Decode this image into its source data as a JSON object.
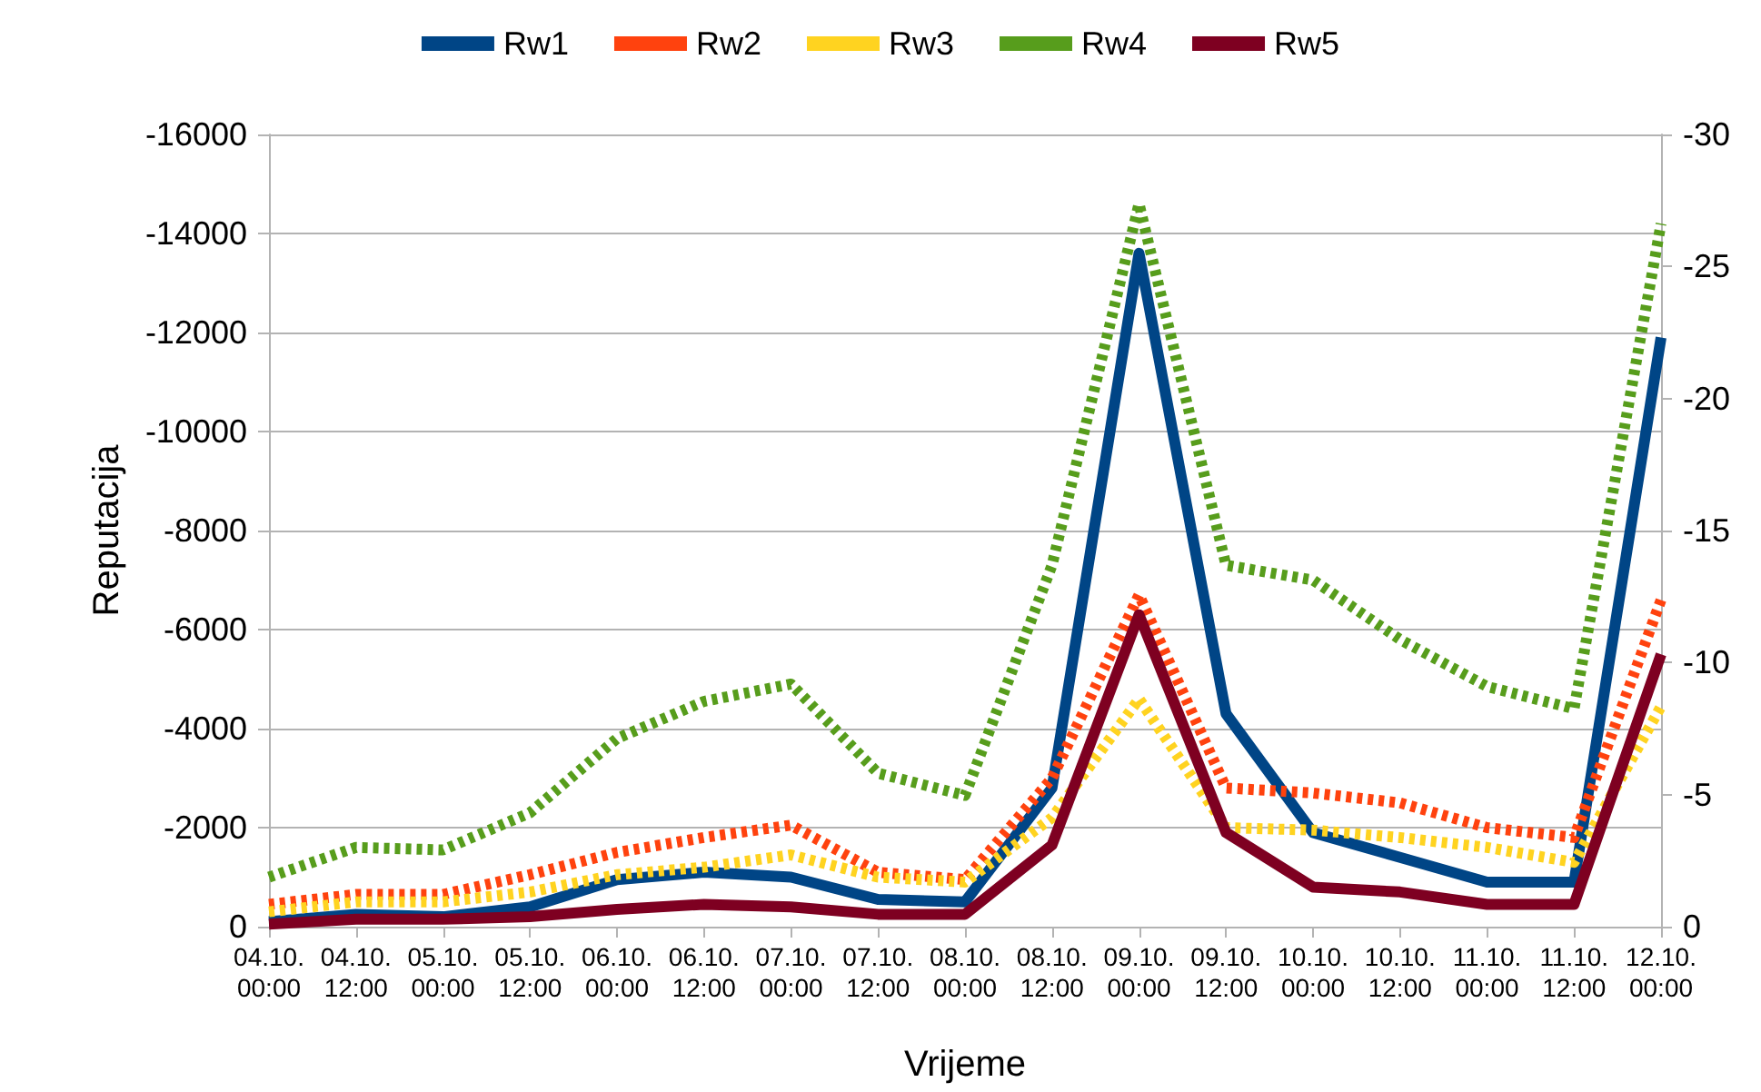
{
  "chart_data": {
    "type": "line",
    "xlabel": "Vrijeme",
    "ylabel": "Reputacija",
    "categories": [
      "04.10. 00:00",
      "04.10. 12:00",
      "05.10. 00:00",
      "05.10. 12:00",
      "06.10. 00:00",
      "06.10. 12:00",
      "07.10. 00:00",
      "07.10. 12:00",
      "08.10. 00:00",
      "08.10. 12:00",
      "09.10. 00:00",
      "09.10. 12:00",
      "10.10. 00:00",
      "10.10. 12:00",
      "11.10. 00:00",
      "11.10. 12:00",
      "12.10. 00:00"
    ],
    "series": [
      {
        "name": "Rw1",
        "color": "#004586",
        "line_style": "solid",
        "values": [
          -100,
          -250,
          -200,
          -400,
          -950,
          -1100,
          -1000,
          -550,
          -500,
          -2800,
          -13600,
          -4300,
          -1900,
          -1400,
          -900,
          -900,
          -11900
        ]
      },
      {
        "name": "Rw2",
        "color": "#ff420e",
        "line_style": "dotted",
        "values": [
          -450,
          -650,
          -650,
          -1050,
          -1500,
          -1800,
          -2050,
          -1100,
          -950,
          -3000,
          -6700,
          -2800,
          -2700,
          -2500,
          -2000,
          -1800,
          -6600
        ]
      },
      {
        "name": "Rw3",
        "color": "#ffd320",
        "line_style": "dotted",
        "values": [
          -300,
          -500,
          -500,
          -700,
          -1050,
          -1200,
          -1450,
          -1000,
          -900,
          -2200,
          -4600,
          -2000,
          -1950,
          -1800,
          -1600,
          -1300,
          -4450
        ]
      },
      {
        "name": "Rw4",
        "color": "#579d1c",
        "line_style": "dotted",
        "values": [
          -1000,
          -1600,
          -1550,
          -2300,
          -3800,
          -4550,
          -4900,
          -3100,
          -2650,
          -7300,
          -14600,
          -7300,
          -7000,
          -5800,
          -4850,
          -4400,
          -14200
        ]
      },
      {
        "name": "Rw5",
        "color": "#7e0021",
        "line_style": "solid",
        "values": [
          -50,
          -150,
          -150,
          -200,
          -350,
          -450,
          -400,
          -250,
          -250,
          -1650,
          -6300,
          -1900,
          -800,
          -700,
          -450,
          -450,
          -5500
        ]
      }
    ],
    "ylim": [
      0,
      -16000
    ],
    "yticks": [
      -16000,
      -14000,
      -12000,
      -10000,
      -8000,
      -6000,
      -4000,
      -2000,
      0
    ],
    "y2lim": [
      0,
      -30
    ],
    "y2ticks": [
      -30,
      -25,
      -20,
      -15,
      -10,
      -5,
      0
    ],
    "grid": "y",
    "legend": "top",
    "marker": "none"
  }
}
